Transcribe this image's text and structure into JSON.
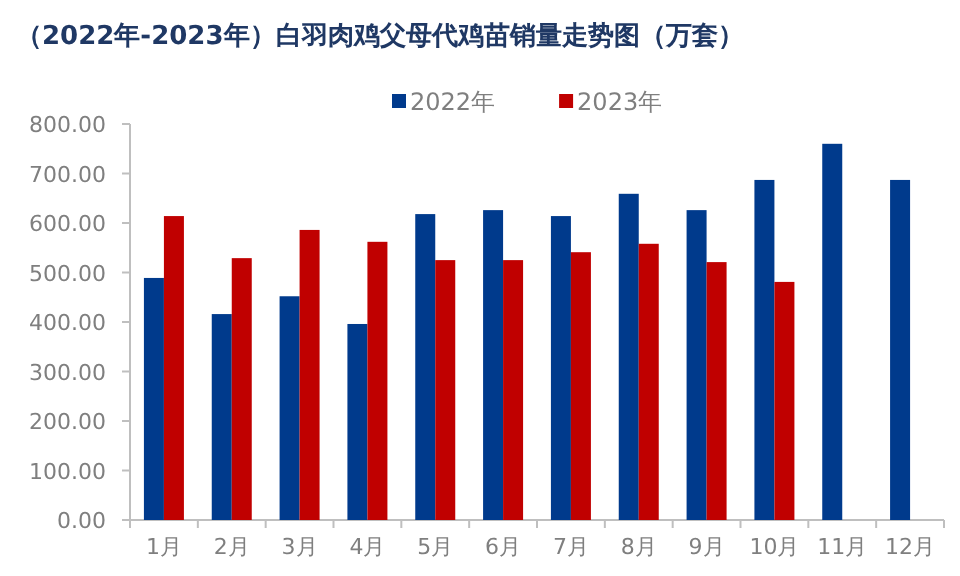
{
  "chart_data": {
    "type": "bar",
    "title": "（2022年-2023年）白羽肉鸡父母代鸡苗销量走势图（万套）",
    "categories": [
      "1月",
      "2月",
      "3月",
      "4月",
      "5月",
      "6月",
      "7月",
      "8月",
      "9月",
      "10月",
      "11月",
      "12月"
    ],
    "series": [
      {
        "name": "2022年",
        "color": "#003a8c",
        "values": [
          489,
          416,
          452,
          396,
          618,
          626,
          614,
          659,
          626,
          687,
          760,
          687
        ]
      },
      {
        "name": "2023年",
        "color": "#c00000",
        "values": [
          614,
          529,
          586,
          562,
          525,
          525,
          541,
          558,
          521,
          481,
          null,
          null
        ]
      }
    ],
    "ylim": [
      0,
      800
    ],
    "yticks": [
      {
        "value": 0,
        "label": "0.00"
      },
      {
        "value": 100,
        "label": "100.00"
      },
      {
        "value": 200,
        "label": "200.00"
      },
      {
        "value": 300,
        "label": "300.00"
      },
      {
        "value": 400,
        "label": "400.00"
      },
      {
        "value": 500,
        "label": "500.00"
      },
      {
        "value": 600,
        "label": "600.00"
      },
      {
        "value": 700,
        "label": "700.00"
      },
      {
        "value": 800,
        "label": "800.00"
      }
    ],
    "grid": false,
    "legend": "top"
  }
}
